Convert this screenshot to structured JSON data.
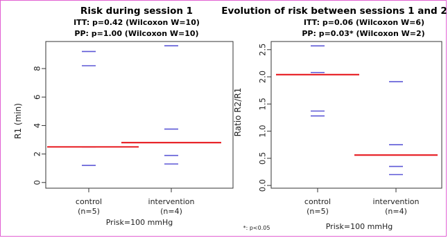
{
  "frame_color": "#e15fd2",
  "footnote": "*: p<0.05",
  "chart_data": [
    {
      "type": "scatter",
      "title": "Risk during session 1",
      "subtitle_lines": [
        "ITT: p=0.42 (Wilcoxon W=10)",
        "PP: p=1.00 (Wilcoxon W=10)"
      ],
      "ylabel": "R1 (min)",
      "ylim": [
        -0.4,
        9.9
      ],
      "yticks": [
        0,
        2,
        4,
        6,
        8
      ],
      "ytick_labels": [
        "0",
        "2",
        "4",
        "6",
        "8"
      ],
      "categories": [
        "control\n(n=5)",
        "intervention\n(n=4)"
      ],
      "points": [
        [
          9.2,
          8.2,
          2.5,
          2.5,
          1.2
        ],
        [
          9.6,
          3.75,
          1.9,
          1.3
        ]
      ],
      "medians": [
        2.5,
        2.8
      ],
      "note": "Prisk=100 mmHg",
      "point_color": "#5b57d6",
      "median_color": "#e8262b",
      "grid": false
    },
    {
      "type": "scatter",
      "title": "Evolution of risk between sessions 1 and 2",
      "subtitle_lines": [
        "ITT: p=0.06 (Wilcoxon W=6)",
        "PP: p=0.03* (Wilcoxon W=2)"
      ],
      "ylabel": "Ratio R2/R1",
      "ylim": [
        -0.05,
        2.65
      ],
      "yticks": [
        0.0,
        0.5,
        1.0,
        1.5,
        2.0,
        2.5
      ],
      "ytick_labels": [
        "0.0",
        "0.5",
        "1.0",
        "1.5",
        "2.0",
        "2.5"
      ],
      "categories": [
        "control\n(n=5)",
        "intervention\n(n=4)"
      ],
      "points": [
        [
          2.57,
          2.08,
          2.04,
          1.37,
          1.28
        ],
        [
          1.91,
          0.75,
          0.35,
          0.2
        ]
      ],
      "medians": [
        2.04,
        0.56
      ],
      "note": "Prisk=100 mmHg",
      "point_color": "#5b57d6",
      "median_color": "#e8262b",
      "grid": false
    }
  ]
}
